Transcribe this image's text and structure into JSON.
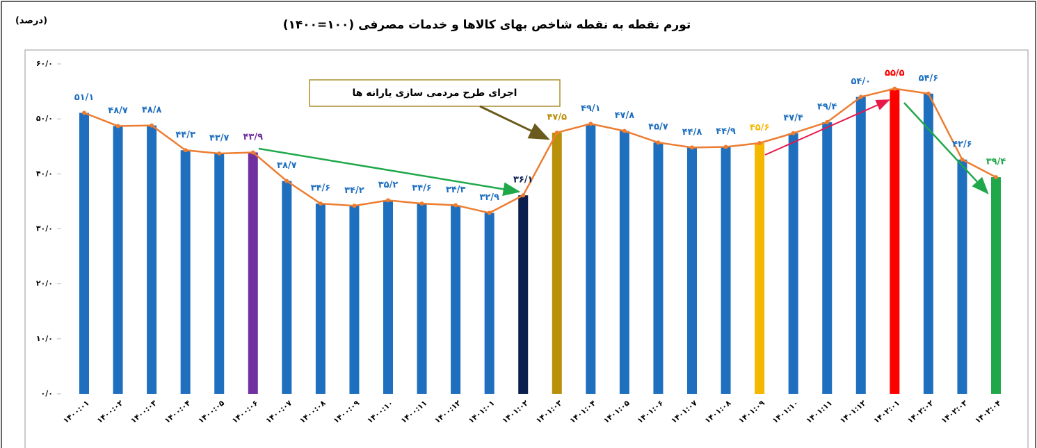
{
  "chart_data": {
    "type": "bar",
    "title": "تورم نقطه به نقطه شاخص بهای کالاها و خدمات مصرفی (۱۰۰=۱۴۰۰)",
    "y_axis_label": "(درصد)",
    "annotation": "اجرای طرح مردمی سازی یارانه ها",
    "categories": [
      "۱۴۰۰:۰۱",
      "۱۴۰۰:۰۲",
      "۱۴۰۰:۰۳",
      "۱۴۰۰:۰۴",
      "۱۴۰۰:۰۵",
      "۱۴۰۰:۰۶",
      "۱۴۰۰:۰۷",
      "۱۴۰۰:۰۸",
      "۱۴۰۰:۰۹",
      "۱۴۰۰:۱۰",
      "۱۴۰۰:۱۱",
      "۱۴۰۰:۱۲",
      "۱۴۰۱:۰۱",
      "۱۴۰۱:۰۲",
      "۱۴۰۱:۰۳",
      "۱۴۰۱:۰۴",
      "۱۴۰۱:۰۵",
      "۱۴۰۱:۰۶",
      "۱۴۰۱:۰۷",
      "۱۴۰۱:۰۸",
      "۱۴۰۱:۰۹",
      "۱۴۰۱:۱۰",
      "۱۴۰۱:۱۱",
      "۱۴۰۱:۱۲",
      "۱۴۰۲:۰۱",
      "۱۴۰۲:۰۲",
      "۱۴۰۲:۰۳",
      "۱۴۰۲:۰۴"
    ],
    "values": [
      51.1,
      48.7,
      48.8,
      44.3,
      43.7,
      43.9,
      38.7,
      34.6,
      34.2,
      35.2,
      34.6,
      34.3,
      32.9,
      36.1,
      47.5,
      49.1,
      47.8,
      45.7,
      44.8,
      44.9,
      45.6,
      47.4,
      49.4,
      54.0,
      55.5,
      54.6,
      42.6,
      39.4
    ],
    "value_labels": [
      "۵۱/۱",
      "۴۸/۷",
      "۴۸/۸",
      "۴۴/۳",
      "۴۳/۷",
      "۴۳/۹",
      "۳۸/۷",
      "۳۴/۶",
      "۳۴/۲",
      "۳۵/۲",
      "۳۴/۶",
      "۳۴/۳",
      "۳۲/۹",
      "۳۶/۱",
      "۴۷/۵",
      "۴۹/۱",
      "۴۷/۸",
      "۴۵/۷",
      "۴۴/۸",
      "۴۴/۹",
      "۴۵/۶",
      "۴۷/۴",
      "۴۹/۴",
      "۵۴/۰",
      "۵۵/۵",
      "۵۴/۶",
      "۴۲/۶",
      "۳۹/۴"
    ],
    "colors": [
      "#1f6fbf",
      "#1f6fbf",
      "#1f6fbf",
      "#1f6fbf",
      "#1f6fbf",
      "#7030a0",
      "#1f6fbf",
      "#1f6fbf",
      "#1f6fbf",
      "#1f6fbf",
      "#1f6fbf",
      "#1f6fbf",
      "#1f6fbf",
      "#0b1f4f",
      "#b8900a",
      "#1f6fbf",
      "#1f6fbf",
      "#1f6fbf",
      "#1f6fbf",
      "#1f6fbf",
      "#f5b800",
      "#1f6fbf",
      "#1f6fbf",
      "#1f6fbf",
      "#ff0000",
      "#1f6fbf",
      "#1f6fbf",
      "#1fa84a"
    ],
    "line_color": "#ed7d31",
    "ylim": [
      0,
      60
    ],
    "yticks": [
      {
        "value": 0,
        "label": "۰/۰"
      },
      {
        "value": 10,
        "label": "۱۰/۰"
      },
      {
        "value": 20,
        "label": "۲۰/۰"
      },
      {
        "value": 30,
        "label": "۳۰/۰"
      },
      {
        "value": 40,
        "label": "۴۰/۰"
      },
      {
        "value": 50,
        "label": "۵۰/۰"
      },
      {
        "value": 60,
        "label": "۶۰/۰"
      }
    ],
    "grid": false
  }
}
